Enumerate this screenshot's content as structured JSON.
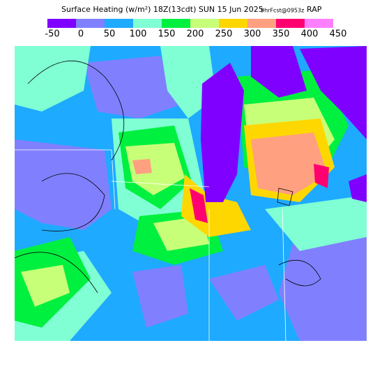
{
  "header": {
    "title": "Surface Heating (w/m²) 18Z(13cdt) SUN 15 Jun 2025",
    "run": "9hrFcst@0953z",
    "model": "RAP"
  },
  "legend": {
    "colors": [
      "#8000ff",
      "#8080ff",
      "#1eaaff",
      "#80ffd4",
      "#00f040",
      "#c8ff78",
      "#ffd700",
      "#ffa080",
      "#ff0070",
      "#ff80ff"
    ],
    "labels": [
      "-50",
      "0",
      "50",
      "100",
      "150",
      "200",
      "250",
      "300",
      "350",
      "400",
      "450"
    ]
  }
}
